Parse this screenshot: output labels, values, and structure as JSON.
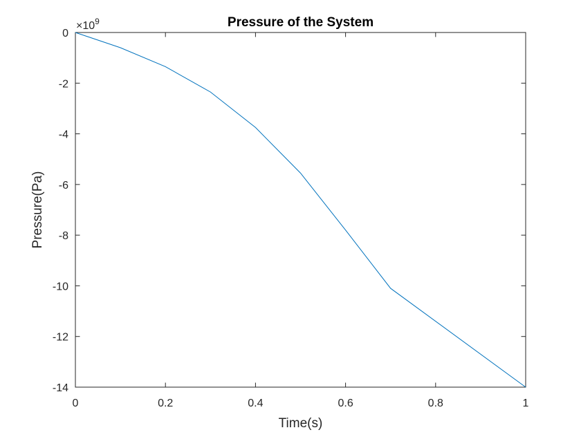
{
  "chart_data": {
    "type": "line",
    "title": "Pressure of the System",
    "xlabel": "Time(s)",
    "ylabel": "Pressure(Pa)",
    "exponent_label": "×10",
    "exponent_power": "9",
    "xlim": [
      0,
      1
    ],
    "ylim": [
      -14,
      0
    ],
    "y_scale_factor": 1000000000,
    "grid": false,
    "x_ticks": [
      0,
      0.2,
      0.4,
      0.6,
      0.8,
      1
    ],
    "x_tick_labels": [
      "0",
      "0.2",
      "0.4",
      "0.6",
      "0.8",
      "1"
    ],
    "y_ticks": [
      0,
      -2,
      -4,
      -6,
      -8,
      -10,
      -12,
      -14
    ],
    "y_tick_labels": [
      "0",
      "-2",
      "-4",
      "-6",
      "-8",
      "-10",
      "-12",
      "-14"
    ],
    "series": [
      {
        "color": "#0072bd",
        "x": [
          0,
          0.1,
          0.2,
          0.3,
          0.4,
          0.5,
          0.6,
          0.7,
          1.0
        ],
        "y": [
          0,
          -0.6,
          -1.35,
          -2.35,
          -3.75,
          -5.55,
          -7.8,
          -10.1,
          -14.0
        ]
      }
    ]
  }
}
